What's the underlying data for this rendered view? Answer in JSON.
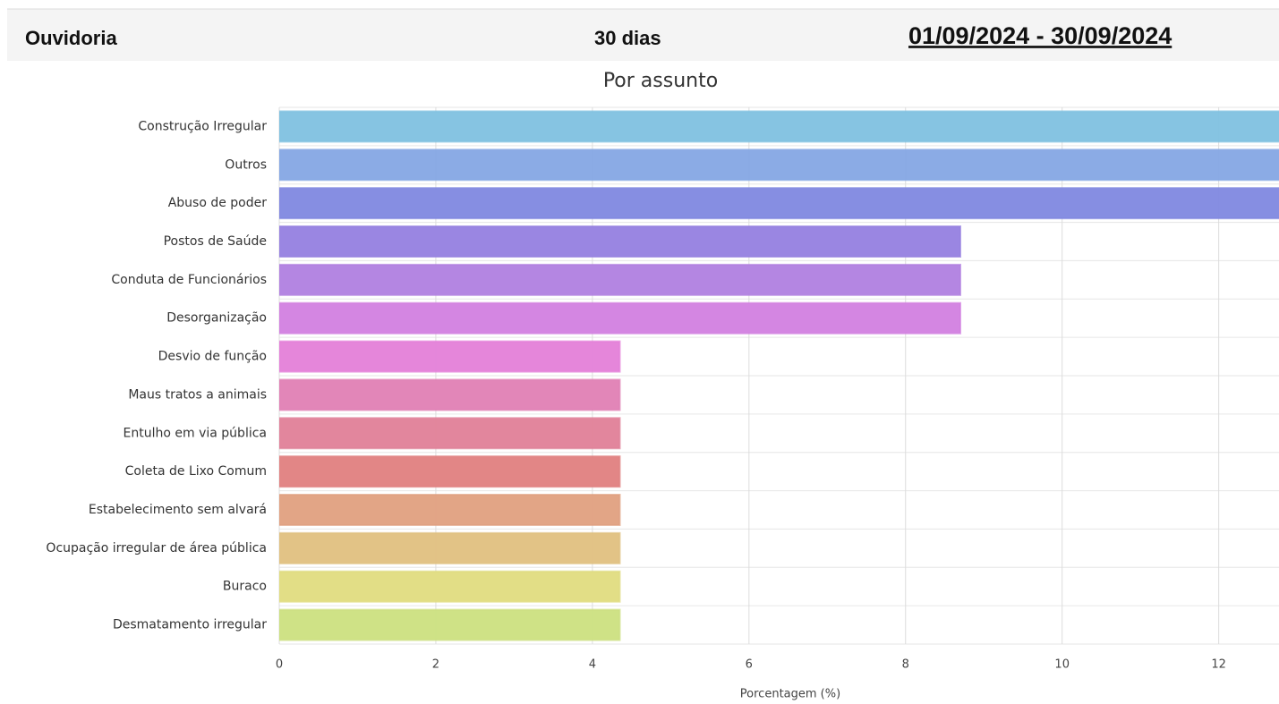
{
  "header": {
    "left": "Ouvidoria",
    "center": "30 dias",
    "right": "01/09/2024 - 30/09/2024"
  },
  "chart_data": {
    "type": "bar",
    "orientation": "horizontal",
    "title": "Por assunto",
    "x_label": "Porcentagem (%)",
    "categories": [
      "Construção Irregular",
      "Outros",
      "Abuso de poder",
      "Postos de Saúde",
      "Conduta de Funcionários",
      "Desorganização",
      "Desvio de função",
      "Maus tratos a animais",
      "Entulho em via pública",
      "Coleta de Lixo Comum",
      "Estabelecimento sem alvará",
      "Ocupação irregular de área pública",
      "Buraco",
      "Desmatamento irregular"
    ],
    "values": [
      13.04,
      13.04,
      13.04,
      8.7,
      8.7,
      8.7,
      4.35,
      4.35,
      4.35,
      4.35,
      4.35,
      4.35,
      4.35,
      4.35
    ],
    "colors": [
      "#7fc1e0",
      "#85a7e4",
      "#8088e0",
      "#9580e0",
      "#b080e0",
      "#d27fe0",
      "#e47fd8",
      "#e07fb4",
      "#e08098",
      "#e08080",
      "#e0a080",
      "#e0c080",
      "#e0dc80",
      "#cce080"
    ],
    "xlim": [
      0,
      12.77
    ],
    "xticks": [
      0,
      2,
      4,
      6,
      8,
      10,
      12
    ],
    "grid": true
  }
}
